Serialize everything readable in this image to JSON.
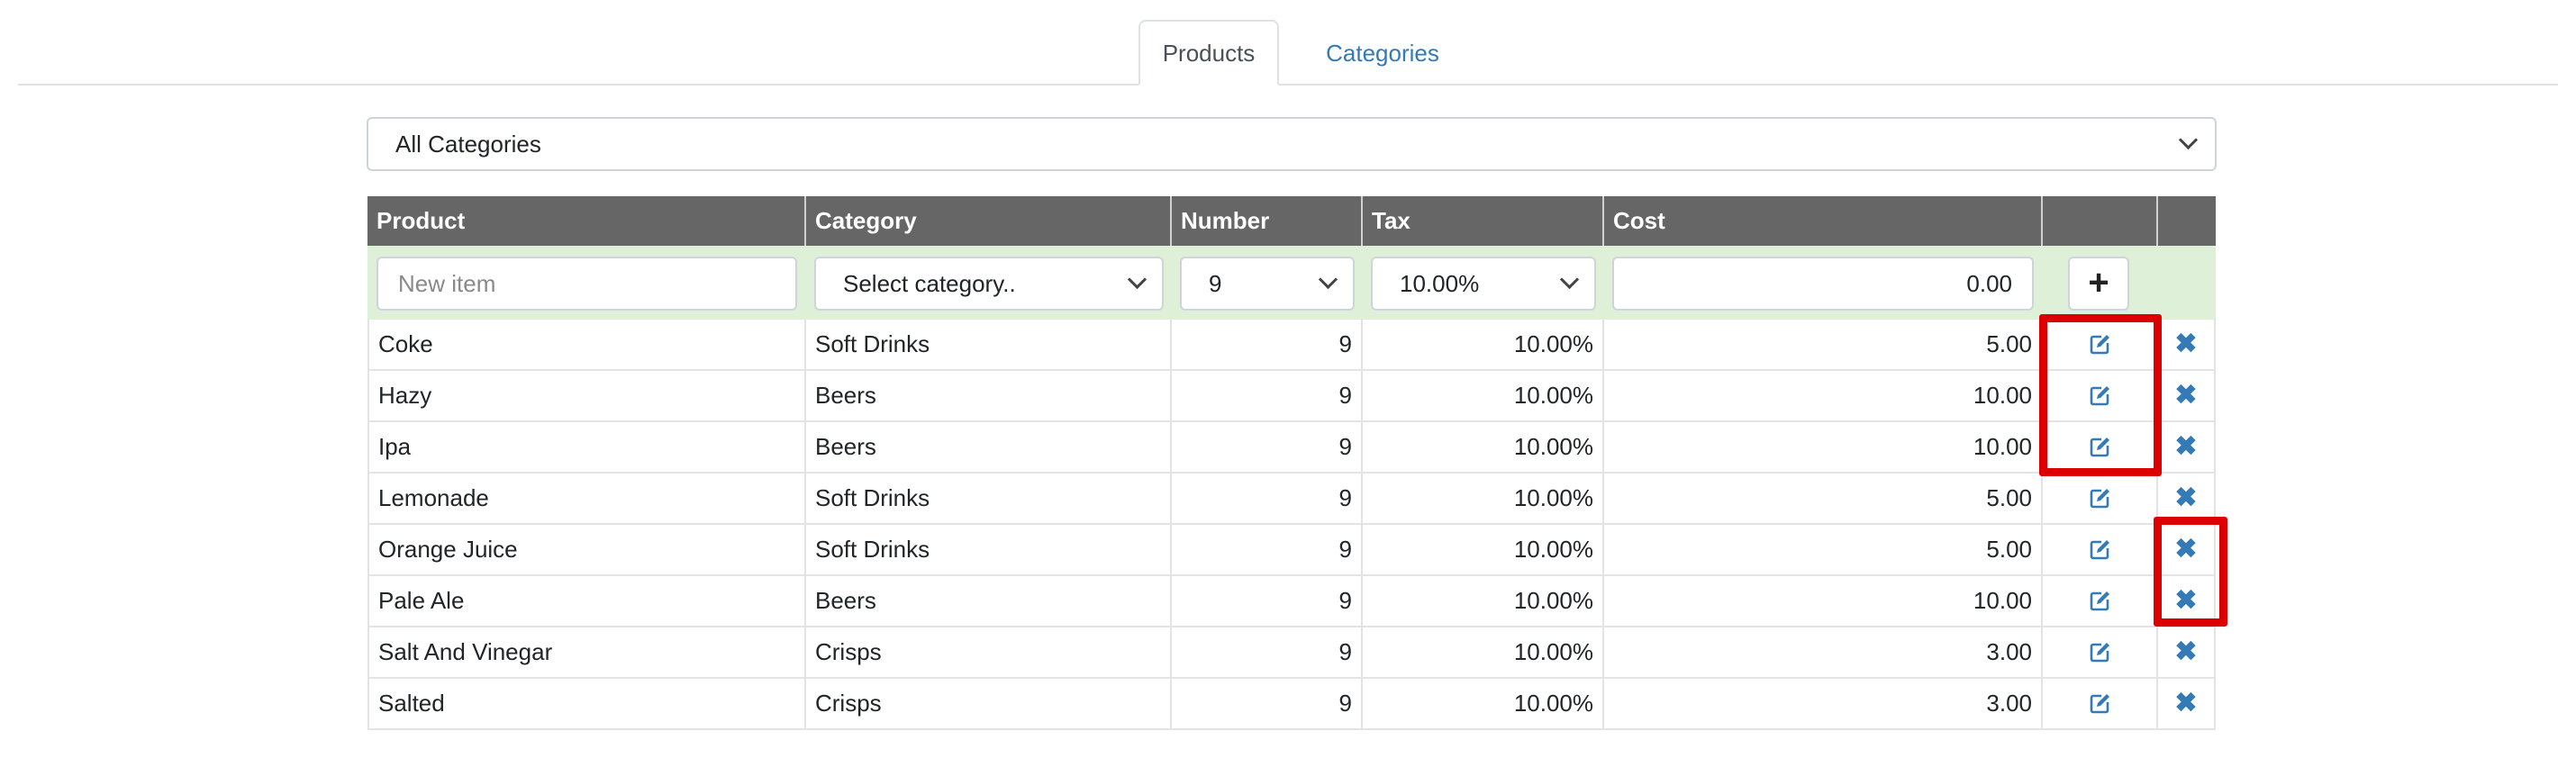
{
  "tabs": [
    {
      "label": "Products",
      "active": true
    },
    {
      "label": "Categories",
      "active": false
    }
  ],
  "filter": {
    "selected": "All Categories"
  },
  "table": {
    "headers": [
      "Product",
      "Category",
      "Number",
      "Tax",
      "Cost",
      "",
      ""
    ],
    "new_row": {
      "name_placeholder": "New item",
      "category_value": "Select category..",
      "number_value": "9",
      "tax_value": "10.00%",
      "cost_value": "0.00",
      "add_icon": "plus-icon"
    },
    "rows": [
      {
        "product": "Coke",
        "category": "Soft Drinks",
        "number": "9",
        "tax": "10.00%",
        "cost": "5.00"
      },
      {
        "product": "Hazy",
        "category": "Beers",
        "number": "9",
        "tax": "10.00%",
        "cost": "10.00"
      },
      {
        "product": "Ipa",
        "category": "Beers",
        "number": "9",
        "tax": "10.00%",
        "cost": "10.00"
      },
      {
        "product": "Lemonade",
        "category": "Soft Drinks",
        "number": "9",
        "tax": "10.00%",
        "cost": "5.00"
      },
      {
        "product": "Orange Juice",
        "category": "Soft Drinks",
        "number": "9",
        "tax": "10.00%",
        "cost": "5.00"
      },
      {
        "product": "Pale Ale",
        "category": "Beers",
        "number": "9",
        "tax": "10.00%",
        "cost": "10.00"
      },
      {
        "product": "Salt And Vinegar",
        "category": "Crisps",
        "number": "9",
        "tax": "10.00%",
        "cost": "3.00"
      },
      {
        "product": "Salted",
        "category": "Crisps",
        "number": "9",
        "tax": "10.00%",
        "cost": "3.00"
      }
    ],
    "row_icons": {
      "edit": "edit-icon",
      "delete": "delete-icon"
    }
  },
  "colors": {
    "header_bg": "#666666",
    "new_row_bg": "#dff0d8",
    "link": "#337ab7",
    "highlight": "#dd0000"
  }
}
